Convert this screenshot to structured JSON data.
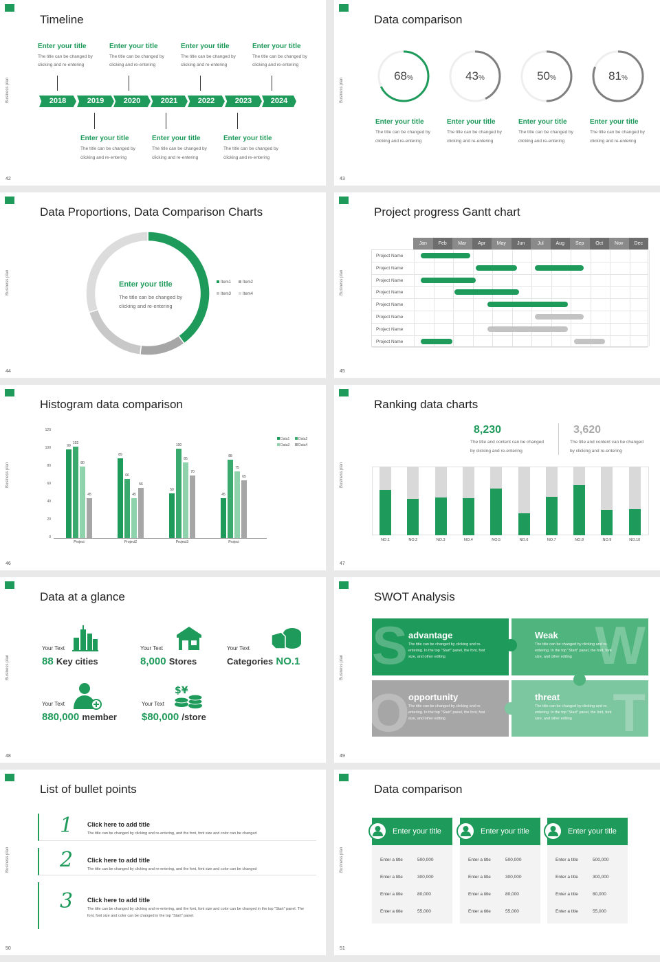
{
  "colors": {
    "green": "#1e9a5a",
    "mid": "#5bbf8a",
    "light": "#8fd3ad",
    "gray": "#a6a6a6",
    "lightgray": "#d9d9d9"
  },
  "vertical_label": "Business plan",
  "slides": [
    {
      "num": "42",
      "title": "Timeline"
    },
    {
      "num": "43",
      "title": "Data comparison"
    },
    {
      "num": "44",
      "title": "Data Proportions, Data Comparison Charts"
    },
    {
      "num": "45",
      "title": "Project progress Gantt chart"
    },
    {
      "num": "46",
      "title": "Histogram data comparison"
    },
    {
      "num": "47",
      "title": "Ranking data charts"
    },
    {
      "num": "48",
      "title": "Data at a glance"
    },
    {
      "num": "49",
      "title": "SWOT Analysis"
    },
    {
      "num": "50",
      "title": "List of bullet points"
    },
    {
      "num": "51",
      "title": "Data comparison"
    }
  ],
  "timeline": {
    "years": [
      "2018",
      "2019",
      "2020",
      "2021",
      "2022",
      "2023",
      "2024"
    ],
    "top": [
      {
        "title": "Enter your title",
        "desc1": "The title can be changed by",
        "desc2": "clicking and re-entering"
      },
      {
        "title": "Enter your title",
        "desc1": "The title can be changed by",
        "desc2": "clicking and re-entering"
      },
      {
        "title": "Enter your title",
        "desc1": "The title can be changed by",
        "desc2": "clicking and re-entering"
      },
      {
        "title": "Enter your title",
        "desc1": "The title can be changed by",
        "desc2": "clicking and re-entering"
      }
    ],
    "bottom": [
      {
        "title": "Enter your title",
        "desc1": "The title can be changed by",
        "desc2": "clicking and re-entering"
      },
      {
        "title": "Enter your title",
        "desc1": "The title can be changed by",
        "desc2": "clicking and re-entering"
      },
      {
        "title": "Enter your title",
        "desc1": "The title can be changed by",
        "desc2": "clicking and re-entering"
      }
    ]
  },
  "rings": [
    {
      "value": 68,
      "label": "68",
      "unit": "%",
      "title": "Enter your title",
      "desc1": "The title can be changed by",
      "desc2": "clicking and re-entering",
      "color": "#1e9a5a"
    },
    {
      "value": 43,
      "label": "43",
      "unit": "%",
      "title": "Enter your title",
      "desc1": "The title can be changed by",
      "desc2": "clicking and re-entering",
      "color": "#7f7f7f"
    },
    {
      "value": 50,
      "label": "50",
      "unit": "%",
      "title": "Enter your title",
      "desc1": "The title can be changed by",
      "desc2": "clicking and re-entering",
      "color": "#7f7f7f"
    },
    {
      "value": 81,
      "label": "81",
      "unit": "%",
      "title": "Enter your title",
      "desc1": "The title can be changed by",
      "desc2": "clicking and re-entering",
      "color": "#7f7f7f"
    }
  ],
  "chart_data": [
    {
      "type": "pie",
      "title": "",
      "center_title": "Enter your title",
      "center_desc1": "The title can be changed by",
      "center_desc2": "clicking and re-entering",
      "legend": [
        "Item1",
        "Item2",
        "Item3",
        "Item4"
      ],
      "values": [
        40,
        12,
        18,
        30
      ],
      "colors": [
        "#1e9a5a",
        "#a6a6a6",
        "#c8c8c8",
        "#dcdcdc"
      ]
    },
    {
      "type": "gantt",
      "months": [
        "Jan",
        "Feb",
        "Mar",
        "Apr",
        "May",
        "Jun",
        "Jul",
        "Aug",
        "Sep",
        "Oct",
        "Nov",
        "Dec"
      ],
      "rows": [
        "Project Name",
        "Project Name",
        "Project Name",
        "Project Name",
        "Project Name",
        "Project Name",
        "Project Name",
        "Project Name"
      ],
      "tasks": [
        {
          "row": 0,
          "bars": [
            [
              0.4,
              2.9,
              "g"
            ]
          ]
        },
        {
          "row": 1,
          "bars": [
            [
              3.2,
              5.3,
              "g"
            ],
            [
              6.2,
              8.7,
              "g"
            ]
          ]
        },
        {
          "row": 2,
          "bars": [
            [
              0.4,
              3.2,
              "g"
            ]
          ]
        },
        {
          "row": 3,
          "bars": [
            [
              2.1,
              5.4,
              "g"
            ]
          ]
        },
        {
          "row": 4,
          "bars": [
            [
              3.8,
              7.9,
              "g"
            ]
          ]
        },
        {
          "row": 5,
          "bars": [
            [
              6.2,
              8.7,
              "gr"
            ]
          ]
        },
        {
          "row": 6,
          "bars": [
            [
              3.8,
              7.9,
              "gr"
            ]
          ]
        },
        {
          "row": 7,
          "bars": [
            [
              0.4,
              2.0,
              "g"
            ],
            [
              8.2,
              9.8,
              "gr"
            ]
          ]
        }
      ]
    },
    {
      "type": "bar",
      "title": "",
      "categories": [
        "Project",
        "Project2",
        "Project3",
        "Project"
      ],
      "series": [
        {
          "name": "Data1",
          "values": [
            99,
            89,
            50,
            45
          ]
        },
        {
          "name": "Data2",
          "values": [
            102,
            66,
            100,
            88
          ]
        },
        {
          "name": "Data3",
          "values": [
            80,
            45,
            85,
            75
          ]
        },
        {
          "name": "Data4",
          "values": [
            45,
            56,
            70,
            65
          ]
        }
      ],
      "ylim": [
        0,
        120
      ],
      "yticks": [
        "0",
        "20",
        "40",
        "60",
        "80",
        "100",
        "120"
      ],
      "colors": [
        "#1e9a5a",
        "#3aaa6e",
        "#8fd3ad",
        "#a6a6a6"
      ]
    },
    {
      "type": "bar",
      "title": "",
      "categories": [
        "NO.1",
        "NO.2",
        "NO.3",
        "NO.4",
        "NO.5",
        "NO.6",
        "NO.7",
        "NO.8",
        "NO.9",
        "NO.10"
      ],
      "values": [
        66,
        53,
        55,
        54,
        68,
        32,
        56,
        73,
        37,
        38
      ],
      "ylim": [
        0,
        100
      ]
    }
  ],
  "ranking": {
    "stat1": "8,230",
    "stat2": "3,620",
    "desc1": "The title and content can be changed",
    "desc2": "by clicking and re-entering"
  },
  "glance": [
    {
      "label": "Your Text",
      "value": "88",
      "unit": "Key cities"
    },
    {
      "label": "Your Text",
      "value": "8,000",
      "unit": "Stores"
    },
    {
      "label": "Your Text",
      "prefix": "Categories",
      "value": "NO.1"
    },
    {
      "label": "Your Text",
      "value": "880,000",
      "unit": "member"
    },
    {
      "label": "Your Text",
      "value": "$80,000",
      "unit": "/store"
    }
  ],
  "swot": [
    {
      "letter": "S",
      "title": "advantage",
      "desc": "The title can be changed by clicking and re-entering. In the top \"Start\" panel, the font, font size, and other editing",
      "color": "#1e9a5a"
    },
    {
      "letter": "W",
      "title": "Weak",
      "desc": "The title can be changed by clicking and re-entering. In the top \"Start\" panel, the font, font size, and other editing",
      "color": "#4fb47d"
    },
    {
      "letter": "O",
      "title": "opportunity",
      "desc": "The title can be changed by clicking and re-entering. In the top \"Start\" panel, the font, font size, and other editing",
      "color": "#a6a6a6"
    },
    {
      "letter": "T",
      "title": "threat",
      "desc": "The title can be changed by clicking and re-entering. In the top \"Start\" panel, the font, font size, and other editing",
      "color": "#7cc6a0"
    }
  ],
  "bullets": [
    {
      "num": "1",
      "title": "Click here to add title",
      "desc": "The title can be changed by clicking and re-entering, and the font, font size and color can be changed"
    },
    {
      "num": "2",
      "title": "Click here to add title",
      "desc": "The title can be changed by clicking and re-entering, and the font, font size and color can be changed"
    },
    {
      "num": "3",
      "title": "Click here to add title",
      "desc": "The title can be changed by clicking and re-entering, and the font, font size and color can be changed in the top \"Start\" panel. The font, font size and color can be changed in the top \"Start\" panel."
    }
  ],
  "cards": [
    {
      "title": "Enter your title",
      "rows": [
        [
          "Enter a title",
          "500,000"
        ],
        [
          "Enter a title",
          "300,000"
        ],
        [
          "Enter a title",
          "80,000"
        ],
        [
          "Enter a title",
          "55,000"
        ]
      ]
    },
    {
      "title": "Enter your title",
      "rows": [
        [
          "Enter a title",
          "500,000"
        ],
        [
          "Enter a title",
          "300,000"
        ],
        [
          "Enter a title",
          "80,000"
        ],
        [
          "Enter a title",
          "55,000"
        ]
      ]
    },
    {
      "title": "Enter your title",
      "rows": [
        [
          "Enter a title",
          "500,000"
        ],
        [
          "Enter a title",
          "300,000"
        ],
        [
          "Enter a title",
          "80,000"
        ],
        [
          "Enter a title",
          "55,000"
        ]
      ]
    }
  ]
}
